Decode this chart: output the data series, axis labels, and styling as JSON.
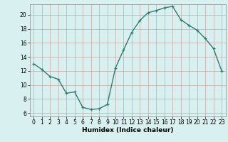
{
  "x": [
    0,
    1,
    2,
    3,
    4,
    5,
    6,
    7,
    8,
    9,
    10,
    11,
    12,
    13,
    14,
    15,
    16,
    17,
    18,
    19,
    20,
    21,
    22,
    23
  ],
  "y": [
    13.0,
    12.2,
    11.2,
    10.8,
    8.8,
    9.0,
    6.8,
    6.5,
    6.6,
    7.2,
    12.4,
    15.0,
    17.5,
    19.2,
    20.3,
    20.6,
    21.0,
    21.2,
    19.3,
    18.5,
    17.8,
    16.6,
    15.2,
    12.0
  ],
  "line_color": "#2e7d6e",
  "marker": "+",
  "bg_color": "#d8f0f0",
  "grid_color": "#c8a8a8",
  "xlabel": "Humidex (Indice chaleur)",
  "ylim": [
    5.5,
    21.5
  ],
  "xlim": [
    -0.5,
    23.5
  ],
  "yticks": [
    6,
    8,
    10,
    12,
    14,
    16,
    18,
    20
  ],
  "xticks": [
    0,
    1,
    2,
    3,
    4,
    5,
    6,
    7,
    8,
    9,
    10,
    11,
    12,
    13,
    14,
    15,
    16,
    17,
    18,
    19,
    20,
    21,
    22,
    23
  ]
}
